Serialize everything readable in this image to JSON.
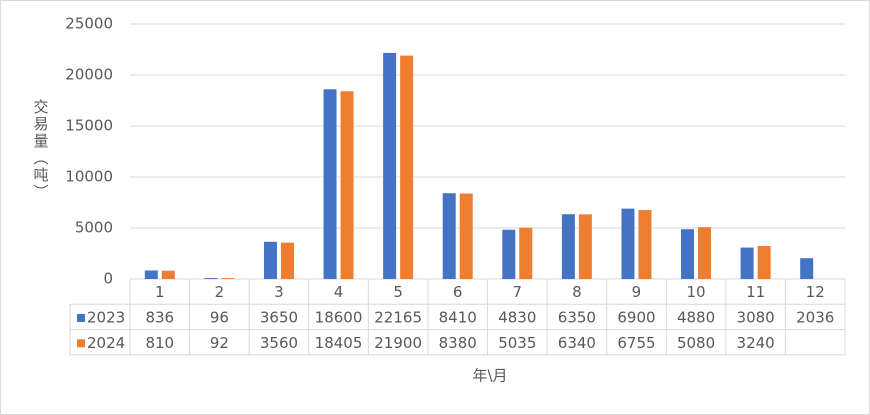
{
  "chart_data": {
    "type": "bar",
    "x_label": "年\\月",
    "y_label": "交易量（吨）",
    "categories": [
      "1",
      "2",
      "3",
      "4",
      "5",
      "6",
      "7",
      "8",
      "9",
      "10",
      "11",
      "12"
    ],
    "series": [
      {
        "name": "2023",
        "color": "#4472c4",
        "values": [
          836,
          96,
          3650,
          18600,
          22165,
          8410,
          4830,
          6350,
          6900,
          4880,
          3080,
          2036
        ]
      },
      {
        "name": "2024",
        "color": "#ed7d31",
        "values": [
          810,
          92,
          3560,
          18405,
          21900,
          8380,
          5035,
          6340,
          6755,
          5080,
          3240,
          null
        ]
      }
    ],
    "ylim": [
      0,
      25000
    ],
    "yticks": [
      0,
      5000,
      10000,
      15000,
      20000,
      25000
    ],
    "grid": true
  }
}
